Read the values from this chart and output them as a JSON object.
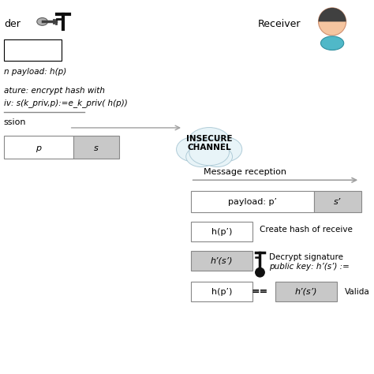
{
  "sender_label": "der",
  "receiver_label": "Receiver",
  "insecure_channel_text": "INSECURE\nCHANNEL",
  "message_reception_text": "Message reception",
  "hash_payload_text": "n payload: h(p)",
  "signature_text1": "ature: encrypt hash with",
  "signature_text2": "iv: s(k_priv,p):=e_k_priv( h(p))",
  "transmission_text": "ssion",
  "payload_label": "payload: p’",
  "s_prime_label": "s’",
  "hp_prime_label": "h(p’)",
  "create_hash_text": "Create hash of receive",
  "hs_prime_label": "h’(s’)",
  "decrypt_text1": "Decrypt signature",
  "decrypt_text2": "public key: h’(s’) :=",
  "hp_prime2_label": "h(p’)",
  "equals_text": "==",
  "hs_prime2_label": "h’(s’)",
  "validate_text": "Valida",
  "bg_color": "#ffffff",
  "text_color": "#000000",
  "gray_color": "#c8c8c8",
  "arrow_color": "#a0a0a0",
  "cloud_fill": "#e8f4f8",
  "cloud_edge": "#b0ccd8"
}
